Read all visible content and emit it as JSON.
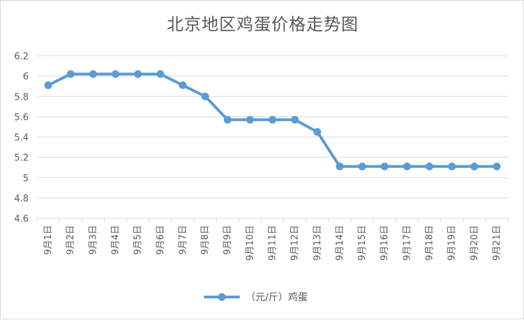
{
  "chart_data": {
    "type": "line",
    "title": "北京地区鸡蛋价格走势图",
    "xlabel": "",
    "ylabel": "",
    "categories": [
      "9月1日",
      "9月2日",
      "9月3日",
      "9月4日",
      "9月5日",
      "9月6日",
      "9月7日",
      "9月8日",
      "9月9日",
      "9月10日",
      "9月11日",
      "9月12日",
      "9月13日",
      "9月14日",
      "9月15日",
      "9月16日",
      "9月17日",
      "9月18日",
      "9月19日",
      "9月20日",
      "9月21日"
    ],
    "series": [
      {
        "name": "（元/斤）鸡蛋",
        "values": [
          5.91,
          6.02,
          6.02,
          6.02,
          6.02,
          6.02,
          5.91,
          5.8,
          5.57,
          5.57,
          5.57,
          5.57,
          5.45,
          5.11,
          5.11,
          5.11,
          5.11,
          5.11,
          5.11,
          5.11,
          5.11
        ]
      }
    ],
    "ylim": [
      4.6,
      6.2
    ],
    "yticks": [
      4.6,
      4.8,
      5,
      5.2,
      5.4,
      5.6,
      5.8,
      6,
      6.2
    ],
    "grid": true,
    "legend_position": "bottom",
    "series_color": "#5b9bd5",
    "grid_color": "#d9d9d9"
  }
}
